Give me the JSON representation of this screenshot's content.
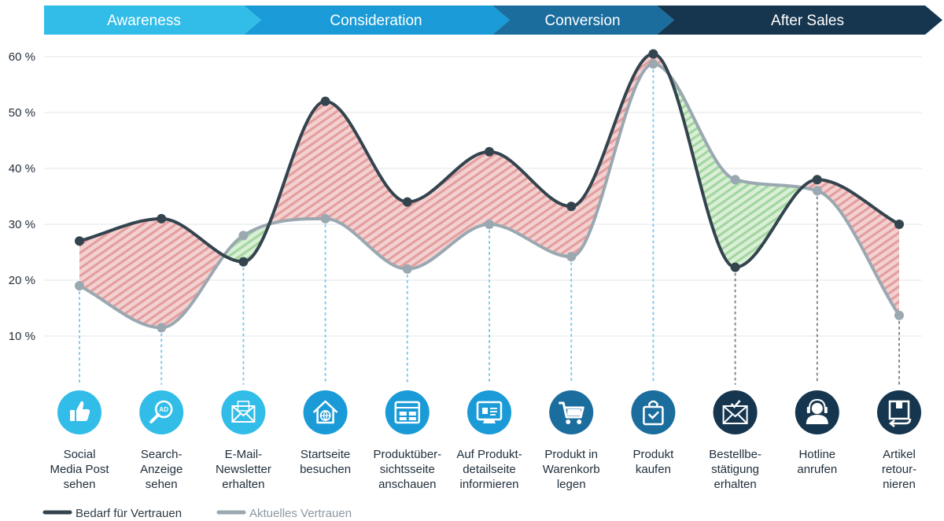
{
  "phases": [
    {
      "label": "Awareness",
      "color": "#32bde9"
    },
    {
      "label": "Consideration",
      "color": "#1a9bd7"
    },
    {
      "label": "Conversion",
      "color": "#1b6d9e"
    },
    {
      "label": "After Sales",
      "color": "#16364f"
    }
  ],
  "chart_data": {
    "type": "line",
    "y_ticks": [
      "60 %",
      "50 %",
      "40 %",
      "30 %",
      "20 %",
      "10 %"
    ],
    "ylim": [
      0,
      60
    ],
    "grid": true,
    "legend_position": "bottom-left",
    "steps": [
      {
        "label": [
          "Social",
          "Media Post",
          "sehen"
        ],
        "icon": "thumbs-up-icon",
        "color": "#32bde9"
      },
      {
        "label": [
          "Search-",
          "Anzeige",
          "sehen"
        ],
        "icon": "ad-search-icon",
        "color": "#32bde9"
      },
      {
        "label": [
          "E-Mail-",
          "Newsletter",
          "erhalten"
        ],
        "icon": "envelope-icon",
        "color": "#32bde9"
      },
      {
        "label": [
          "Startseite",
          "besuchen"
        ],
        "icon": "home-globe-icon",
        "color": "#1a9bd7"
      },
      {
        "label": [
          "Produktüber-",
          "sichtsseite",
          "anschauen"
        ],
        "icon": "browser-grid-icon",
        "color": "#1a9bd7"
      },
      {
        "label": [
          "Auf Produkt-",
          "detailseite",
          "informieren"
        ],
        "icon": "product-page-icon",
        "color": "#1a9bd7"
      },
      {
        "label": [
          "Produkt in",
          "Warenkorb",
          "legen"
        ],
        "icon": "cart-icon",
        "color": "#1b6d9e"
      },
      {
        "label": [
          "Produkt",
          "kaufen"
        ],
        "icon": "shopping-bag-icon",
        "color": "#1b6d9e"
      },
      {
        "label": [
          "Bestellbe-",
          "stätigung",
          "erhalten"
        ],
        "icon": "mail-check-icon",
        "color": "#16364f"
      },
      {
        "label": [
          "Hotline",
          "anrufen"
        ],
        "icon": "headset-icon",
        "color": "#16364f"
      },
      {
        "label": [
          "Artikel",
          "retour-",
          "nieren"
        ],
        "icon": "return-box-icon",
        "color": "#16364f"
      }
    ],
    "series": [
      {
        "name": "Bedarf für Vertrauen",
        "color": "#34444e",
        "values": [
          27,
          31,
          23.3,
          52,
          34,
          43,
          33.2,
          60.5,
          22.3,
          38,
          30
        ]
      },
      {
        "name": "Aktuelles Vertrauen",
        "color": "#9aa8b1",
        "values": [
          19,
          11.5,
          28,
          31,
          22,
          30,
          24.2,
          58.7,
          38,
          36,
          13.7
        ]
      }
    ],
    "fill_colors": {
      "demand_higher": "#e06b6b",
      "current_higher": "#6cc56c"
    }
  }
}
